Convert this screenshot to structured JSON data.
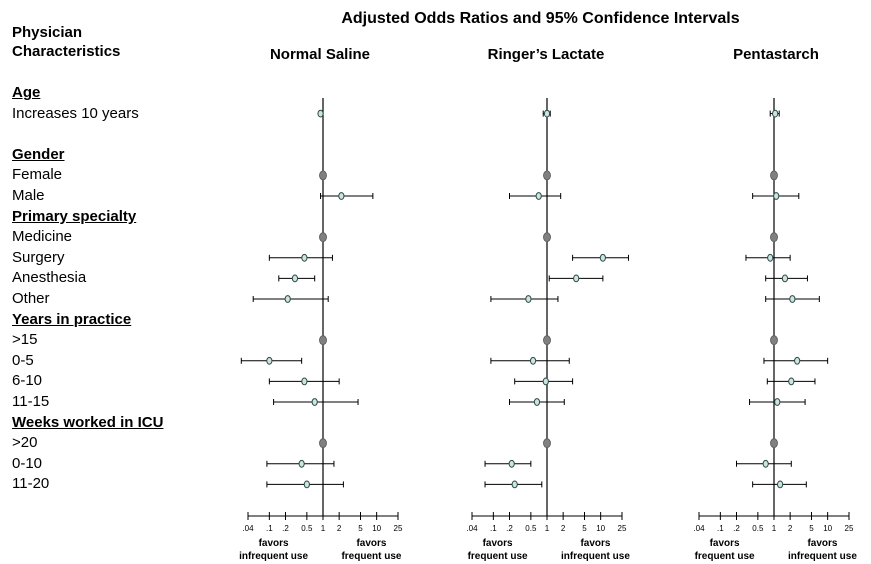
{
  "title": "Adjusted Odds Ratios and 95% Confidence Intervals",
  "column_header": [
    "Physician",
    "Characteristics"
  ],
  "rows": [
    {
      "label": "Age",
      "heading": true
    },
    {
      "label": "Increases 10 years",
      "heading": false
    },
    {
      "label": "",
      "heading": false
    },
    {
      "label": "Gender",
      "heading": true
    },
    {
      "label": "Female",
      "heading": false
    },
    {
      "label": "Male",
      "heading": false
    },
    {
      "label": "Primary specialty",
      "heading": true
    },
    {
      "label": "Medicine",
      "heading": false
    },
    {
      "label": "Surgery",
      "heading": false
    },
    {
      "label": "Anesthesia",
      "heading": false
    },
    {
      "label": "Other",
      "heading": false
    },
    {
      "label": "Years in practice",
      "heading": true
    },
    {
      "label": ">15",
      "heading": false
    },
    {
      "label": "0-5",
      "heading": false
    },
    {
      "label": "6-10",
      "heading": false
    },
    {
      "label": "11-15",
      "heading": false
    },
    {
      "label": "Weeks worked in ICU",
      "heading": true
    },
    {
      "label": ">20",
      "heading": false
    },
    {
      "label": "0-10",
      "heading": false
    },
    {
      "label": "11-20",
      "heading": false
    }
  ],
  "chart_data": [
    {
      "type": "forest",
      "title": "Normal Saline",
      "x_scale": "log",
      "xlim": [
        0.04,
        25
      ],
      "x_ticks": [
        ".04",
        ".1",
        ".2",
        "0.5",
        "1",
        "2",
        "5",
        "10",
        "25"
      ],
      "footnote_left": [
        "favors",
        "infrequent use"
      ],
      "footnote_right": [
        "favors",
        "frequent use"
      ],
      "points": [
        {
          "row": "Increases 10 years",
          "or": 0.9,
          "lo": 0.85,
          "hi": 0.95,
          "reference": false
        },
        {
          "row": "Female",
          "or": 1,
          "lo": 1,
          "hi": 1,
          "reference": true
        },
        {
          "row": "Male",
          "or": 2.2,
          "lo": 0.9,
          "hi": 8.5,
          "reference": false
        },
        {
          "row": "Medicine",
          "or": 1,
          "lo": 1,
          "hi": 1,
          "reference": true
        },
        {
          "row": "Surgery",
          "or": 0.45,
          "lo": 0.1,
          "hi": 1.5,
          "reference": false
        },
        {
          "row": "Anesthesia",
          "or": 0.3,
          "lo": 0.15,
          "hi": 0.7,
          "reference": false
        },
        {
          "row": "Other",
          "or": 0.22,
          "lo": 0.05,
          "hi": 1.25,
          "reference": false
        },
        {
          "row": ">15",
          "or": 1,
          "lo": 1,
          "hi": 1,
          "reference": true
        },
        {
          "row": "0-5",
          "or": 0.1,
          "lo": 0.03,
          "hi": 0.4,
          "reference": false
        },
        {
          "row": "6-10",
          "or": 0.45,
          "lo": 0.1,
          "hi": 2.0,
          "reference": false
        },
        {
          "row": "11-15",
          "or": 0.7,
          "lo": 0.12,
          "hi": 4.5,
          "reference": false
        },
        {
          "row": ">20",
          "or": 1,
          "lo": 1,
          "hi": 1,
          "reference": true
        },
        {
          "row": "0-10",
          "or": 0.4,
          "lo": 0.09,
          "hi": 1.6,
          "reference": false
        },
        {
          "row": "11-20",
          "or": 0.5,
          "lo": 0.09,
          "hi": 2.4,
          "reference": false
        }
      ]
    },
    {
      "type": "forest",
      "title": "Ringer’s Lactate",
      "x_scale": "log",
      "xlim": [
        0.04,
        25
      ],
      "x_ticks": [
        ".04",
        ".1",
        ".2",
        "0.5",
        "1",
        "2",
        "5",
        "10",
        "25"
      ],
      "footnote_left": [
        "favors",
        "frequent use"
      ],
      "footnote_right": [
        "favors",
        "infrequent use"
      ],
      "points": [
        {
          "row": "Increases 10 years",
          "or": 1.0,
          "lo": 0.85,
          "hi": 1.15,
          "reference": false
        },
        {
          "row": "Female",
          "or": 1,
          "lo": 1,
          "hi": 1,
          "reference": true
        },
        {
          "row": "Male",
          "or": 0.7,
          "lo": 0.2,
          "hi": 1.8,
          "reference": false
        },
        {
          "row": "Medicine",
          "or": 1,
          "lo": 1,
          "hi": 1,
          "reference": true
        },
        {
          "row": "Surgery",
          "or": 11,
          "lo": 3.0,
          "hi": 33,
          "reference": false
        },
        {
          "row": "Anesthesia",
          "or": 3.5,
          "lo": 1.1,
          "hi": 11,
          "reference": false
        },
        {
          "row": "Other",
          "or": 0.45,
          "lo": 0.09,
          "hi": 1.6,
          "reference": false
        },
        {
          "row": ">15",
          "or": 1,
          "lo": 1,
          "hi": 1,
          "reference": true
        },
        {
          "row": "0-5",
          "or": 0.55,
          "lo": 0.09,
          "hi": 2.6,
          "reference": false
        },
        {
          "row": "6-10",
          "or": 0.95,
          "lo": 0.25,
          "hi": 3.0,
          "reference": false
        },
        {
          "row": "11-15",
          "or": 0.65,
          "lo": 0.2,
          "hi": 2.1,
          "reference": false
        },
        {
          "row": ">20",
          "or": 1,
          "lo": 1,
          "hi": 1,
          "reference": true
        },
        {
          "row": "0-10",
          "or": 0.22,
          "lo": 0.07,
          "hi": 0.5,
          "reference": false
        },
        {
          "row": "11-20",
          "or": 0.25,
          "lo": 0.07,
          "hi": 0.8,
          "reference": false
        }
      ]
    },
    {
      "type": "forest",
      "title": "Pentastarch",
      "x_scale": "log",
      "xlim": [
        0.04,
        25
      ],
      "x_ticks": [
        ".04",
        ".1",
        ".2",
        "0.5",
        "1",
        "2",
        "5",
        "10",
        "25"
      ],
      "footnote_left": [
        "favors",
        "frequent use"
      ],
      "footnote_right": [
        "favors",
        "infrequent use"
      ],
      "points": [
        {
          "row": "Increases 10 years",
          "or": 1.05,
          "lo": 0.85,
          "hi": 1.25,
          "reference": false
        },
        {
          "row": "Female",
          "or": 1,
          "lo": 1,
          "hi": 1,
          "reference": true
        },
        {
          "row": "Male",
          "or": 1.1,
          "lo": 0.4,
          "hi": 2.9,
          "reference": false
        },
        {
          "row": "Medicine",
          "or": 1,
          "lo": 1,
          "hi": 1,
          "reference": true
        },
        {
          "row": "Surgery",
          "or": 0.85,
          "lo": 0.3,
          "hi": 2.0,
          "reference": false
        },
        {
          "row": "Anesthesia",
          "or": 1.6,
          "lo": 0.7,
          "hi": 4.2,
          "reference": false
        },
        {
          "row": "Other",
          "or": 2.2,
          "lo": 0.7,
          "hi": 7.0,
          "reference": false
        },
        {
          "row": ">15",
          "or": 1,
          "lo": 1,
          "hi": 1,
          "reference": true
        },
        {
          "row": "0-5",
          "or": 2.7,
          "lo": 0.65,
          "hi": 10,
          "reference": false
        },
        {
          "row": "6-10",
          "or": 2.1,
          "lo": 0.75,
          "hi": 5.8,
          "reference": false
        },
        {
          "row": "11-15",
          "or": 1.15,
          "lo": 0.35,
          "hi": 3.8,
          "reference": false
        },
        {
          "row": ">20",
          "or": 1,
          "lo": 1,
          "hi": 1,
          "reference": true
        },
        {
          "row": "0-10",
          "or": 0.7,
          "lo": 0.2,
          "hi": 2.1,
          "reference": false
        },
        {
          "row": "11-20",
          "or": 1.3,
          "lo": 0.4,
          "hi": 4.0,
          "reference": false
        }
      ]
    }
  ],
  "colors": {
    "estimate_fill": "#cfe3e0",
    "reference_fill": "#808080",
    "line": "#000000"
  }
}
